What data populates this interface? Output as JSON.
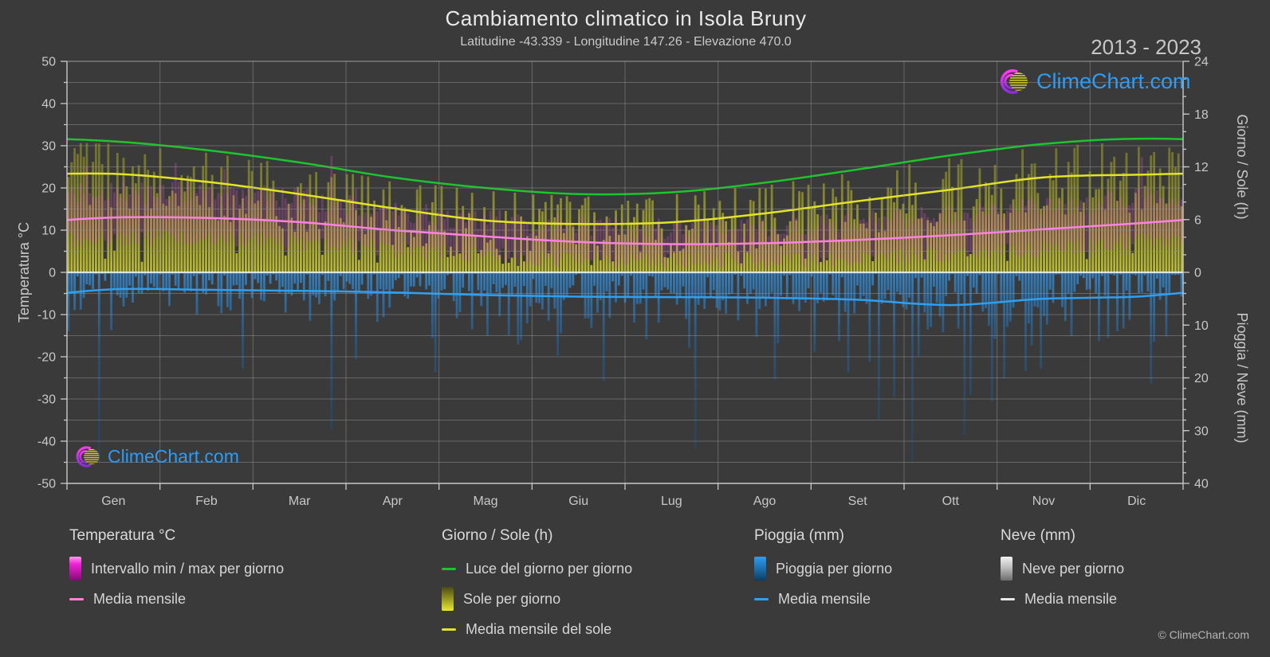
{
  "header": {
    "title": "Cambiamento climatico in Isola Bruny",
    "subtitle": "Latitudine -43.339 - Longitudine 147.26 - Elevazione 470.0",
    "year_range": "2013 - 2023"
  },
  "branding": {
    "watermark_text": "ClimeChart.com",
    "copyright": "© ClimeChart.com"
  },
  "axes": {
    "left": {
      "title": "Temperatura °C",
      "ticks": [
        50,
        40,
        30,
        20,
        10,
        0,
        -10,
        -20,
        -30,
        -40,
        -50
      ]
    },
    "right_sun": {
      "title": "Giorno / Sole (h)",
      "ticks": [
        24,
        18,
        12,
        6,
        0
      ]
    },
    "right_rain": {
      "title": "Pioggia / Neve (mm)",
      "ticks": [
        10,
        20,
        30,
        40
      ]
    },
    "months": [
      "Gen",
      "Feb",
      "Mar",
      "Apr",
      "Mag",
      "Giu",
      "Lug",
      "Ago",
      "Set",
      "Ott",
      "Nov",
      "Dic"
    ]
  },
  "legend": {
    "groups": [
      {
        "title": "Temperatura °C",
        "items": [
          {
            "swatch": "gradient-magenta",
            "label": "Intervallo min / max per giorno"
          },
          {
            "swatch": "line-pink",
            "label": "Media mensile"
          }
        ]
      },
      {
        "title": "Giorno / Sole (h)",
        "items": [
          {
            "swatch": "line-green",
            "label": "Luce del giorno per giorno"
          },
          {
            "swatch": "gradient-sun",
            "label": "Sole per giorno"
          },
          {
            "swatch": "line-yellow",
            "label": "Media mensile del sole"
          }
        ]
      },
      {
        "title": "Pioggia (mm)",
        "items": [
          {
            "swatch": "gradient-rain",
            "label": "Pioggia per giorno"
          },
          {
            "swatch": "line-blue",
            "label": "Media mensile"
          }
        ]
      },
      {
        "title": "Neve (mm)",
        "items": [
          {
            "swatch": "gradient-snow",
            "label": "Neve per giorno"
          },
          {
            "swatch": "line-white",
            "label": "Media mensile"
          }
        ]
      }
    ]
  },
  "colors": {
    "background": "#3a3a3a",
    "grid": "#8c8c8c",
    "zero_line": "#e6e6e6",
    "axis_text": "#c8c8c8",
    "daylight_line": "#1dc42e",
    "sun_mean_line": "#e3e328",
    "temp_mean_line": "#ff82e0",
    "rain_mean_line": "#2f9ff2",
    "snow_mean_line": "#e8e8e8",
    "temp_range_fill": "#ec56d6",
    "sun_bar": "#cdcd30",
    "rain_bar": "#2e8cd4",
    "logo_blue": "#2e9bf5",
    "logo_magenta": "#ff3df0",
    "logo_purple": "#8a2be2",
    "logo_yellow": "#ddd51c"
  },
  "chart_data": {
    "type": "composite-climate",
    "categories": [
      "Gen",
      "Feb",
      "Mar",
      "Apr",
      "Mag",
      "Giu",
      "Lug",
      "Ago",
      "Set",
      "Ott",
      "Nov",
      "Dic"
    ],
    "days_per_month": [
      31,
      28,
      31,
      30,
      31,
      30,
      31,
      31,
      30,
      31,
      30,
      31
    ],
    "temp_axis": {
      "min": -50,
      "max": 50,
      "unit": "°C"
    },
    "sun_axis": {
      "min": 0,
      "max": 24,
      "unit": "h"
    },
    "rain_axis": {
      "min": 0,
      "max": 40,
      "unit": "mm",
      "direction": "down"
    },
    "grid": {
      "horizontal_step_temp": 5,
      "vertical": "month-boundaries"
    },
    "series": [
      {
        "name": "Luce del giorno per giorno",
        "type": "line",
        "unit": "h",
        "monthly": [
          14.9,
          13.9,
          12.5,
          10.8,
          9.6,
          8.9,
          9.1,
          10.2,
          11.7,
          13.3,
          14.6,
          15.2
        ]
      },
      {
        "name": "Sole per giorno",
        "type": "daily-bars",
        "unit": "h",
        "monthly_mean": [
          11.2,
          10.3,
          8.9,
          7.3,
          5.9,
          5.5,
          5.7,
          6.7,
          8.1,
          9.4,
          10.8,
          11.1
        ]
      },
      {
        "name": "Media mensile del sole",
        "type": "line",
        "unit": "h",
        "monthly": [
          11.2,
          10.3,
          8.9,
          7.3,
          5.9,
          5.5,
          5.7,
          6.7,
          8.1,
          9.4,
          10.8,
          11.1
        ]
      },
      {
        "name": "Intervallo min / max per giorno",
        "type": "daily-range-bars",
        "unit": "°C",
        "monthly_min": [
          8,
          8,
          7,
          5.5,
          4,
          3,
          2.5,
          2.8,
          3.2,
          4.2,
          5.5,
          7
        ],
        "monthly_max": [
          19,
          19,
          17.5,
          14.5,
          12.5,
          11,
          10.5,
          10.8,
          12,
          13.5,
          15.5,
          17.5
        ]
      },
      {
        "name": "Media mensile",
        "group": "Temperatura °C",
        "type": "line",
        "unit": "°C",
        "monthly": [
          13,
          12.9,
          11.9,
          10,
          8.5,
          7.2,
          6.7,
          6.9,
          7.7,
          8.8,
          10.2,
          11.6
        ]
      },
      {
        "name": "Pioggia per giorno",
        "type": "daily-bars",
        "unit": "mm",
        "monthly_mean": [
          3.2,
          3.3,
          3.5,
          3.8,
          4.3,
          4.6,
          4.7,
          4.8,
          5.2,
          6.2,
          5.0,
          4.6
        ]
      },
      {
        "name": "Media mensile",
        "group": "Pioggia (mm)",
        "type": "line",
        "unit": "mm",
        "monthly": [
          3.2,
          3.3,
          3.5,
          3.8,
          4.3,
          4.6,
          4.7,
          4.8,
          5.2,
          6.2,
          5.0,
          4.6
        ]
      },
      {
        "name": "Neve per giorno",
        "type": "daily-bars",
        "unit": "mm",
        "monthly_mean": [
          0,
          0,
          0,
          0,
          0,
          0,
          0,
          0,
          0,
          0,
          0,
          0
        ]
      },
      {
        "name": "Media mensile",
        "group": "Neve (mm)",
        "type": "line",
        "unit": "mm",
        "monthly": [
          0,
          0,
          0,
          0,
          0,
          0,
          0,
          0,
          0,
          0,
          0,
          0
        ]
      }
    ]
  }
}
